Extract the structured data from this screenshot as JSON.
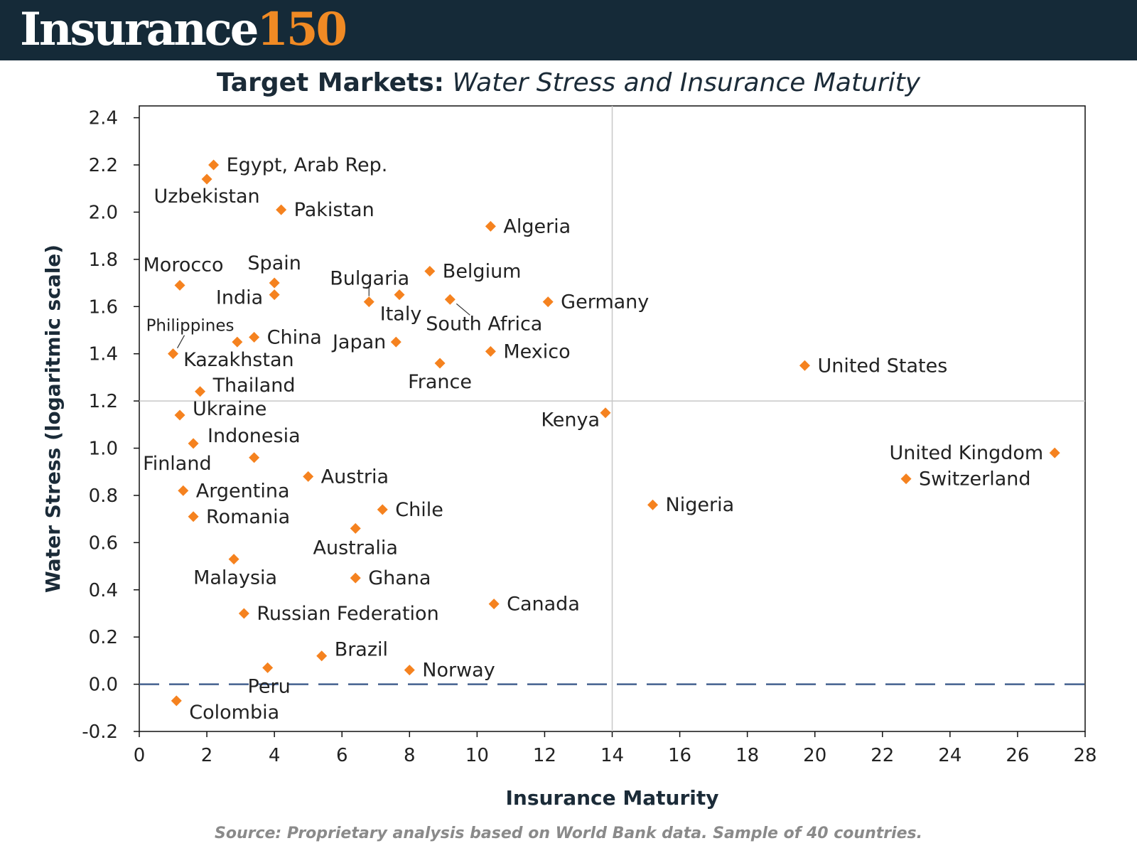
{
  "header": {
    "brand_word": "Insurance",
    "brand_number": "150"
  },
  "title": {
    "bold": "Target Markets:",
    "italic": "Water Stress and Insurance Maturity"
  },
  "source": "Source: Proprietary analysis based on World Bank data. Sample of 40 countries.",
  "colors": {
    "banner": "#152a38",
    "accent": "#f08a24",
    "marker": "#f5821f",
    "baseline": "#44608f",
    "gridline": "#c8c8c8",
    "axis_text": "#222222",
    "title_text": "#1b2b38"
  },
  "chart_data": {
    "type": "scatter",
    "xlabel": "Insurance Maturity",
    "ylabel": "Water Stress (logaritmic scale)",
    "xlim": [
      0,
      28
    ],
    "ylim": [
      -0.2,
      2.45
    ],
    "x_ticks": [
      0,
      2,
      4,
      6,
      8,
      10,
      12,
      14,
      16,
      18,
      20,
      22,
      24,
      26,
      28
    ],
    "y_ticks": [
      -0.2,
      0.0,
      0.2,
      0.4,
      0.6,
      0.8,
      1.0,
      1.2,
      1.4,
      1.6,
      1.8,
      2.0,
      2.2,
      2.4
    ],
    "reference_lines": [
      {
        "axis": "x",
        "value": 14,
        "style": "solid"
      },
      {
        "axis": "y",
        "value": 1.2,
        "style": "solid"
      },
      {
        "axis": "y",
        "value": 0.0,
        "style": "dashed"
      }
    ],
    "points": [
      {
        "label": "Egypt, Arab Rep.",
        "x": 2.2,
        "y": 2.2
      },
      {
        "label": "Uzbekistan",
        "x": 2.0,
        "y": 2.14
      },
      {
        "label": "Pakistan",
        "x": 4.2,
        "y": 2.01
      },
      {
        "label": "Algeria",
        "x": 10.4,
        "y": 1.94
      },
      {
        "label": "Morocco",
        "x": 1.2,
        "y": 1.69
      },
      {
        "label": "Spain",
        "x": 4.0,
        "y": 1.7
      },
      {
        "label": "India",
        "x": 4.0,
        "y": 1.65
      },
      {
        "label": "Bulgaria",
        "x": 6.8,
        "y": 1.62
      },
      {
        "label": "Italy",
        "x": 7.7,
        "y": 1.65
      },
      {
        "label": "Belgium",
        "x": 8.6,
        "y": 1.75
      },
      {
        "label": "South Africa",
        "x": 9.2,
        "y": 1.63
      },
      {
        "label": "Germany",
        "x": 12.1,
        "y": 1.62
      },
      {
        "label": "Philippines",
        "x": 1.0,
        "y": 1.4
      },
      {
        "label": "Kazakhstan",
        "x": 2.9,
        "y": 1.45
      },
      {
        "label": "China",
        "x": 3.4,
        "y": 1.47
      },
      {
        "label": "Japan",
        "x": 7.6,
        "y": 1.45
      },
      {
        "label": "Mexico",
        "x": 10.4,
        "y": 1.41
      },
      {
        "label": "France",
        "x": 8.9,
        "y": 1.36
      },
      {
        "label": "United States",
        "x": 19.7,
        "y": 1.35
      },
      {
        "label": "Thailand",
        "x": 1.8,
        "y": 1.24
      },
      {
        "label": "Ukraine",
        "x": 1.2,
        "y": 1.14
      },
      {
        "label": "Kenya",
        "x": 13.8,
        "y": 1.15
      },
      {
        "label": "Indonesia",
        "x": 1.6,
        "y": 1.02
      },
      {
        "label": "Finland",
        "x": 3.4,
        "y": 0.96
      },
      {
        "label": "United Kingdom",
        "x": 27.1,
        "y": 0.98
      },
      {
        "label": "Switzerland",
        "x": 22.7,
        "y": 0.87
      },
      {
        "label": "Austria",
        "x": 5.0,
        "y": 0.88
      },
      {
        "label": "Argentina",
        "x": 1.3,
        "y": 0.82
      },
      {
        "label": "Nigeria",
        "x": 15.2,
        "y": 0.76
      },
      {
        "label": "Chile",
        "x": 7.2,
        "y": 0.74
      },
      {
        "label": "Romania",
        "x": 1.6,
        "y": 0.71
      },
      {
        "label": "Australia",
        "x": 6.4,
        "y": 0.66
      },
      {
        "label": "Malaysia",
        "x": 2.8,
        "y": 0.53
      },
      {
        "label": "Ghana",
        "x": 6.4,
        "y": 0.45
      },
      {
        "label": "Canada",
        "x": 10.5,
        "y": 0.34
      },
      {
        "label": "Russian Federation",
        "x": 3.1,
        "y": 0.3
      },
      {
        "label": "Brazil",
        "x": 5.4,
        "y": 0.12
      },
      {
        "label": "Peru",
        "x": 3.8,
        "y": 0.07
      },
      {
        "label": "Norway",
        "x": 8.0,
        "y": 0.06
      },
      {
        "label": "Colombia",
        "x": 1.1,
        "y": -0.07
      }
    ]
  }
}
